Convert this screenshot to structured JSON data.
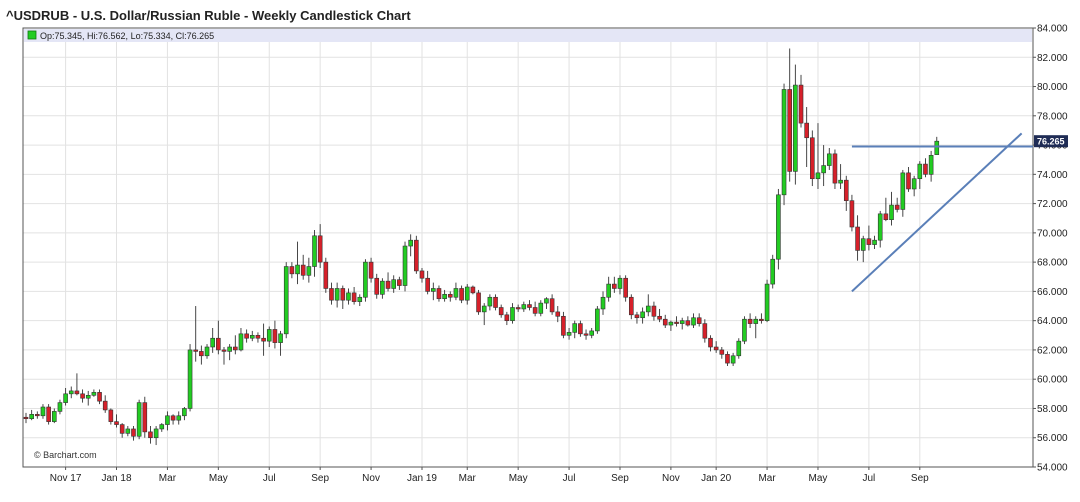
{
  "header": {
    "title": "^USDRUB - U.S. Dollar/Russian Ruble - Weekly Candlestick Chart"
  },
  "legend": {
    "text": "Op:75.345, Hi:76.562, Lo:75.334, Cl:76.265"
  },
  "watermark": "© Barchart.com",
  "colors": {
    "up": "#22cc22",
    "down": "#d6202a",
    "trendline": "#5a7fb8",
    "legend_bg": "#e4e6f6",
    "last_price_bg": "#1f2c55"
  },
  "chart_data": {
    "type": "candlestick",
    "title": "^USDRUB - U.S. Dollar/Russian Ruble - Weekly Candlestick Chart",
    "xlabel": "",
    "ylabel": "",
    "ylim": [
      54,
      84
    ],
    "y_ticks": [
      "54.000",
      "56.000",
      "58.000",
      "60.000",
      "62.000",
      "64.000",
      "66.000",
      "68.000",
      "70.000",
      "72.000",
      "74.000",
      "76.000",
      "78.000",
      "80.000",
      "82.000",
      "84.000"
    ],
    "x_ticks": [
      {
        "label": "Nov 17",
        "index": 7
      },
      {
        "label": "Jan 18",
        "index": 16
      },
      {
        "label": "Mar",
        "index": 25
      },
      {
        "label": "May",
        "index": 34
      },
      {
        "label": "Jul",
        "index": 43
      },
      {
        "label": "Sep",
        "index": 52
      },
      {
        "label": "Nov",
        "index": 61
      },
      {
        "label": "Jan 19",
        "index": 70
      },
      {
        "label": "Mar",
        "index": 78
      },
      {
        "label": "May",
        "index": 87
      },
      {
        "label": "Jul",
        "index": 96
      },
      {
        "label": "Sep",
        "index": 105
      },
      {
        "label": "Nov",
        "index": 114
      },
      {
        "label": "Jan 20",
        "index": 122
      },
      {
        "label": "Mar",
        "index": 131
      },
      {
        "label": "May",
        "index": 140
      },
      {
        "label": "Jul",
        "index": 149
      },
      {
        "label": "Sep",
        "index": 158
      }
    ],
    "last_price": "76.265",
    "candles": [
      [
        57.4,
        57.7,
        57.0,
        57.3
      ],
      [
        57.3,
        57.9,
        57.2,
        57.6
      ],
      [
        57.6,
        57.8,
        57.3,
        57.5
      ],
      [
        57.5,
        58.3,
        57.3,
        58.1
      ],
      [
        58.1,
        58.3,
        56.9,
        57.1
      ],
      [
        57.1,
        58.0,
        57.0,
        57.8
      ],
      [
        57.8,
        58.6,
        57.6,
        58.4
      ],
      [
        58.4,
        59.4,
        58.2,
        59.0
      ],
      [
        59.0,
        59.5,
        58.7,
        59.2
      ],
      [
        59.2,
        60.4,
        58.9,
        59.0
      ],
      [
        59.0,
        59.3,
        58.4,
        58.7
      ],
      [
        58.7,
        59.2,
        58.2,
        58.9
      ],
      [
        58.9,
        59.3,
        58.8,
        59.1
      ],
      [
        59.1,
        59.3,
        58.3,
        58.5
      ],
      [
        58.5,
        58.9,
        57.7,
        57.9
      ],
      [
        57.9,
        58.0,
        56.9,
        57.1
      ],
      [
        57.1,
        57.6,
        56.7,
        56.9
      ],
      [
        56.9,
        57.0,
        56.0,
        56.3
      ],
      [
        56.3,
        56.8,
        56.1,
        56.6
      ],
      [
        56.6,
        56.8,
        55.8,
        56.1
      ],
      [
        56.1,
        58.6,
        55.9,
        58.4
      ],
      [
        58.4,
        58.8,
        56.0,
        56.4
      ],
      [
        56.4,
        56.8,
        55.6,
        56.0
      ],
      [
        56.0,
        56.8,
        55.5,
        56.6
      ],
      [
        56.6,
        57.0,
        56.4,
        56.9
      ],
      [
        56.9,
        57.8,
        56.5,
        57.5
      ],
      [
        57.5,
        57.6,
        56.9,
        57.2
      ],
      [
        57.2,
        57.8,
        56.9,
        57.5
      ],
      [
        57.5,
        58.1,
        57.2,
        58.0
      ],
      [
        58.0,
        62.4,
        57.8,
        62.0
      ],
      [
        62.0,
        65.0,
        61.2,
        61.9
      ],
      [
        61.9,
        62.3,
        61.0,
        61.6
      ],
      [
        61.6,
        62.4,
        61.4,
        62.2
      ],
      [
        62.2,
        63.5,
        61.8,
        62.8
      ],
      [
        62.8,
        64.0,
        61.7,
        62.0
      ],
      [
        62.0,
        62.2,
        61.0,
        61.9
      ],
      [
        61.9,
        62.4,
        61.3,
        62.2
      ],
      [
        62.2,
        63.0,
        61.7,
        62.0
      ],
      [
        62.0,
        63.5,
        61.9,
        63.1
      ],
      [
        63.1,
        63.4,
        62.5,
        62.8
      ],
      [
        62.8,
        63.3,
        62.6,
        63.0
      ],
      [
        63.0,
        63.2,
        62.5,
        62.8
      ],
      [
        62.8,
        63.8,
        61.6,
        62.6
      ],
      [
        62.6,
        63.6,
        62.2,
        63.4
      ],
      [
        63.4,
        64.0,
        62.1,
        62.5
      ],
      [
        62.5,
        63.3,
        61.6,
        63.1
      ],
      [
        63.1,
        68.0,
        62.8,
        67.7
      ],
      [
        67.7,
        68.0,
        66.9,
        67.2
      ],
      [
        67.2,
        69.4,
        66.5,
        67.8
      ],
      [
        67.8,
        68.5,
        66.8,
        67.1
      ],
      [
        67.1,
        68.3,
        66.6,
        67.7
      ],
      [
        67.7,
        70.2,
        67.0,
        69.8
      ],
      [
        69.8,
        70.6,
        67.6,
        68.0
      ],
      [
        68.0,
        68.3,
        65.9,
        66.2
      ],
      [
        66.2,
        66.6,
        65.1,
        65.4
      ],
      [
        65.4,
        66.6,
        64.9,
        66.2
      ],
      [
        66.2,
        66.4,
        64.8,
        65.4
      ],
      [
        65.4,
        66.2,
        65.1,
        65.9
      ],
      [
        65.9,
        66.3,
        65.1,
        65.3
      ],
      [
        65.3,
        65.8,
        65.0,
        65.6
      ],
      [
        65.6,
        68.2,
        65.3,
        68.0
      ],
      [
        68.0,
        68.3,
        66.6,
        66.9
      ],
      [
        66.9,
        67.2,
        65.5,
        65.8
      ],
      [
        65.8,
        66.9,
        65.5,
        66.7
      ],
      [
        66.7,
        67.3,
        66.0,
        66.2
      ],
      [
        66.2,
        67.1,
        65.9,
        66.8
      ],
      [
        66.8,
        67.0,
        66.1,
        66.4
      ],
      [
        66.4,
        69.4,
        66.0,
        69.1
      ],
      [
        69.1,
        69.9,
        68.4,
        69.5
      ],
      [
        69.5,
        69.8,
        67.2,
        67.4
      ],
      [
        67.4,
        67.6,
        66.6,
        66.9
      ],
      [
        66.9,
        67.4,
        65.8,
        66.0
      ],
      [
        66.0,
        66.6,
        65.4,
        66.2
      ],
      [
        66.2,
        66.4,
        65.3,
        65.5
      ],
      [
        65.5,
        66.1,
        65.3,
        65.8
      ],
      [
        65.8,
        66.0,
        65.3,
        65.6
      ],
      [
        65.6,
        66.6,
        65.4,
        66.2
      ],
      [
        66.2,
        66.4,
        65.2,
        65.4
      ],
      [
        65.4,
        66.5,
        65.1,
        66.3
      ],
      [
        66.3,
        66.4,
        65.8,
        65.9
      ],
      [
        65.9,
        66.1,
        64.4,
        64.6
      ],
      [
        64.6,
        65.2,
        63.7,
        65.0
      ],
      [
        65.0,
        65.8,
        64.7,
        65.6
      ],
      [
        65.6,
        65.8,
        64.7,
        64.9
      ],
      [
        64.9,
        65.1,
        64.2,
        64.4
      ],
      [
        64.4,
        64.6,
        63.7,
        64.0
      ],
      [
        64.0,
        65.2,
        63.8,
        64.9
      ],
      [
        64.9,
        65.1,
        64.6,
        64.8
      ],
      [
        64.8,
        65.3,
        64.6,
        65.1
      ],
      [
        65.1,
        65.4,
        64.7,
        64.9
      ],
      [
        64.9,
        65.3,
        64.3,
        64.5
      ],
      [
        64.5,
        65.4,
        64.3,
        65.2
      ],
      [
        65.2,
        65.6,
        64.8,
        65.5
      ],
      [
        65.5,
        65.8,
        64.4,
        64.6
      ],
      [
        64.6,
        65.0,
        63.9,
        64.3
      ],
      [
        64.3,
        64.6,
        62.8,
        63.0
      ],
      [
        63.0,
        63.5,
        62.7,
        63.2
      ],
      [
        63.2,
        64.0,
        62.8,
        63.8
      ],
      [
        63.8,
        64.0,
        62.9,
        63.1
      ],
      [
        63.1,
        63.4,
        62.7,
        63.0
      ],
      [
        63.0,
        63.5,
        62.8,
        63.3
      ],
      [
        63.3,
        65.0,
        63.1,
        64.8
      ],
      [
        64.8,
        66.0,
        64.4,
        65.6
      ],
      [
        65.6,
        67.0,
        65.3,
        66.5
      ],
      [
        66.5,
        67.0,
        65.9,
        66.2
      ],
      [
        66.2,
        67.1,
        65.8,
        66.9
      ],
      [
        66.9,
        67.1,
        65.3,
        65.6
      ],
      [
        65.6,
        65.8,
        64.1,
        64.4
      ],
      [
        64.4,
        64.6,
        63.8,
        64.2
      ],
      [
        64.2,
        64.9,
        63.8,
        64.6
      ],
      [
        64.6,
        65.8,
        64.3,
        65.0
      ],
      [
        65.0,
        65.3,
        64.0,
        64.3
      ],
      [
        64.3,
        64.8,
        63.9,
        64.1
      ],
      [
        64.1,
        64.4,
        63.5,
        63.7
      ],
      [
        63.7,
        64.0,
        63.3,
        63.9
      ],
      [
        63.9,
        64.3,
        63.6,
        63.8
      ],
      [
        63.8,
        64.2,
        63.4,
        64.0
      ],
      [
        64.0,
        64.3,
        63.6,
        63.7
      ],
      [
        63.7,
        64.5,
        63.5,
        64.2
      ],
      [
        64.2,
        64.5,
        63.6,
        63.8
      ],
      [
        63.8,
        64.1,
        62.5,
        62.8
      ],
      [
        62.8,
        63.0,
        61.9,
        62.2
      ],
      [
        62.2,
        62.6,
        61.8,
        62.0
      ],
      [
        62.0,
        62.2,
        61.4,
        61.7
      ],
      [
        61.7,
        61.9,
        60.9,
        61.1
      ],
      [
        61.1,
        61.8,
        60.9,
        61.6
      ],
      [
        61.6,
        62.8,
        61.4,
        62.6
      ],
      [
        62.6,
        64.3,
        62.4,
        64.1
      ],
      [
        64.1,
        64.5,
        63.5,
        63.8
      ],
      [
        63.8,
        64.3,
        62.8,
        64.1
      ],
      [
        64.1,
        64.5,
        63.8,
        64.0
      ],
      [
        64.0,
        66.8,
        63.9,
        66.5
      ],
      [
        66.5,
        68.5,
        66.2,
        68.2
      ],
      [
        68.2,
        73.0,
        67.5,
        72.6
      ],
      [
        72.6,
        80.2,
        71.9,
        79.8
      ],
      [
        79.8,
        82.6,
        73.5,
        74.2
      ],
      [
        74.2,
        81.5,
        73.3,
        80.1
      ],
      [
        80.1,
        80.8,
        77.2,
        77.5
      ],
      [
        77.5,
        78.6,
        74.5,
        76.5
      ],
      [
        76.5,
        77.0,
        73.2,
        73.7
      ],
      [
        73.7,
        77.5,
        73.0,
        74.1
      ],
      [
        74.1,
        76.0,
        73.2,
        74.6
      ],
      [
        74.6,
        75.8,
        74.3,
        75.4
      ],
      [
        75.4,
        75.7,
        73.0,
        73.4
      ],
      [
        73.4,
        74.7,
        73.0,
        73.6
      ],
      [
        73.6,
        73.9,
        71.5,
        72.2
      ],
      [
        72.2,
        72.6,
        70.1,
        70.4
      ],
      [
        70.4,
        71.2,
        68.1,
        68.8
      ],
      [
        68.8,
        69.8,
        68.0,
        69.6
      ],
      [
        69.6,
        70.5,
        68.8,
        69.2
      ],
      [
        69.2,
        69.8,
        68.9,
        69.5
      ],
      [
        69.5,
        71.5,
        69.0,
        71.3
      ],
      [
        71.3,
        72.4,
        70.8,
        70.9
      ],
      [
        70.9,
        72.8,
        70.5,
        71.9
      ],
      [
        71.9,
        72.4,
        71.4,
        71.6
      ],
      [
        71.6,
        74.3,
        71.1,
        74.1
      ],
      [
        74.1,
        74.5,
        72.8,
        73.0
      ],
      [
        73.0,
        73.9,
        72.5,
        73.7
      ],
      [
        73.7,
        74.9,
        73.0,
        74.7
      ],
      [
        74.7,
        75.1,
        73.8,
        74.0
      ],
      [
        74.0,
        75.6,
        73.5,
        75.3
      ],
      [
        75.345,
        76.562,
        75.334,
        76.265
      ]
    ],
    "horizontal_line": 75.9,
    "trendline": {
      "from": {
        "index": 146,
        "value": 66.0
      },
      "to": {
        "index": 176,
        "value": 76.8
      }
    }
  }
}
